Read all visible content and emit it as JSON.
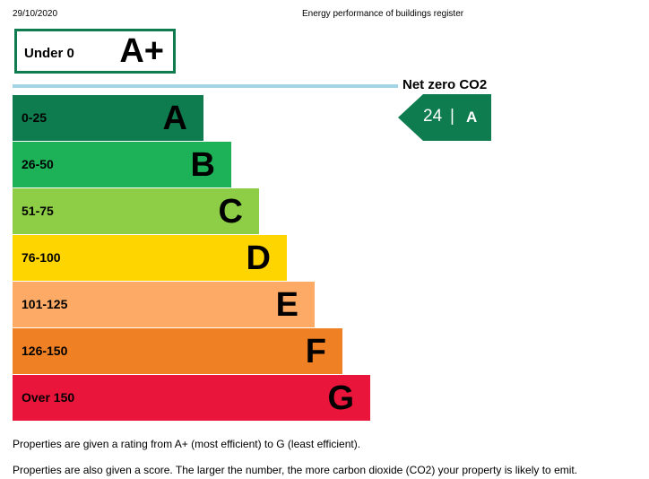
{
  "header": {
    "date": "29/10/2020",
    "title": "Energy performance of buildings register"
  },
  "top_band": {
    "range": "Under 0",
    "letter": "A+",
    "color": "#0e7c4f"
  },
  "net_zero": {
    "label": "Net zero CO2",
    "color": "#a3d4e6"
  },
  "bands": [
    {
      "range": "0-25",
      "letter": "A",
      "color": "#0e7c4f"
    },
    {
      "range": "26-50",
      "letter": "B",
      "color": "#1db158"
    },
    {
      "range": "51-75",
      "letter": "C",
      "color": "#8dce46"
    },
    {
      "range": "76-100",
      "letter": "D",
      "color": "#ffd500"
    },
    {
      "range": "101-125",
      "letter": "E",
      "color": "#fcaa65"
    },
    {
      "range": "126-150",
      "letter": "F",
      "color": "#ef8023"
    },
    {
      "range": "Over 150",
      "letter": "G",
      "color": "#e9153b"
    }
  ],
  "current": {
    "score": "24",
    "separator": "|",
    "rating": "A",
    "color": "#0e7c4f"
  },
  "notes": [
    "Properties are given a rating from A+ (most efficient) to G (least efficient).",
    "Properties are also given a score. The larger the number, the more carbon dioxide (CO2) your property is likely to emit."
  ]
}
